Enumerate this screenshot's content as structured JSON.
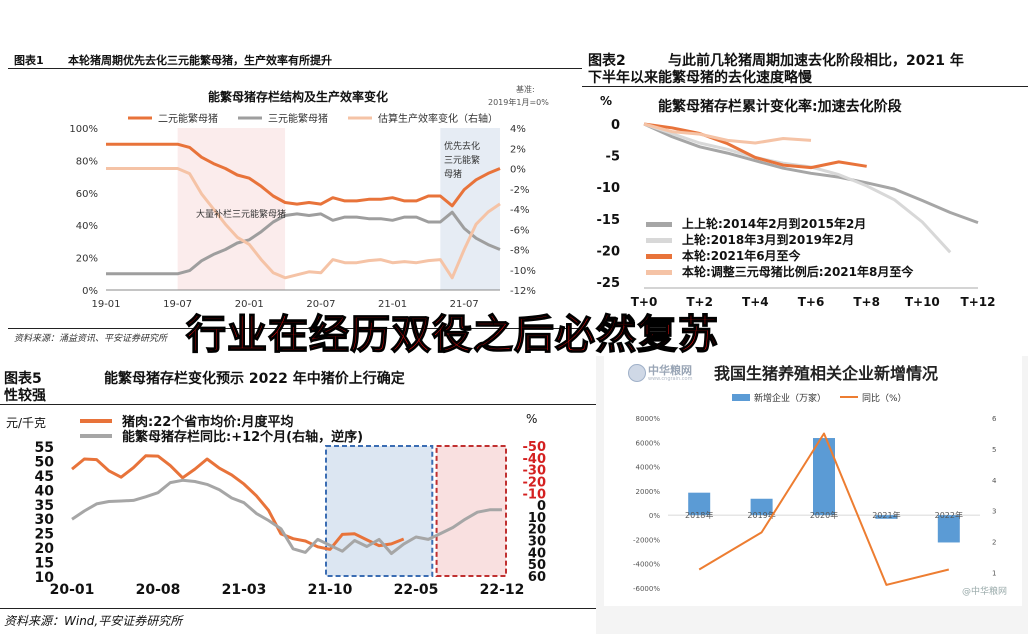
{
  "headline": "行业在经历双役之后必然复苏",
  "panel1": {
    "tag": "图表1",
    "caption": "本轮猪周期优先去化三元能繁母猪，生产效率有所提升",
    "source": "资料来源：涌益资讯、平安证券研究所",
    "chart_data": {
      "type": "line",
      "title": "能繁母猪存栏结构及生产效率变化",
      "base_note": [
        "基准:",
        "2019年1月=0%"
      ],
      "x_ticks": [
        "19-01",
        "19-07",
        "20-01",
        "20-07",
        "21-01",
        "21-07"
      ],
      "y_left_ticks": [
        "100%",
        "80%",
        "60%",
        "40%",
        "20%",
        "0%"
      ],
      "y_right_ticks": [
        "4%",
        "2%",
        "0%",
        "-2%",
        "-4%",
        "-6%",
        "-8%",
        "-10%",
        "-12%"
      ],
      "ylim_left": [
        0,
        100
      ],
      "ylim_right": [
        -12,
        4
      ],
      "x_months": [
        "2019-01",
        "2019-02",
        "2019-03",
        "2019-04",
        "2019-05",
        "2019-06",
        "2019-07",
        "2019-08",
        "2019-09",
        "2019-10",
        "2019-11",
        "2019-12",
        "2020-01",
        "2020-02",
        "2020-03",
        "2020-04",
        "2020-05",
        "2020-06",
        "2020-07",
        "2020-08",
        "2020-09",
        "2020-10",
        "2020-11",
        "2020-12",
        "2021-01",
        "2021-02",
        "2021-03",
        "2021-04",
        "2021-05",
        "2021-06",
        "2021-07",
        "2021-08",
        "2021-09",
        "2021-10"
      ],
      "series": [
        {
          "name": "二元能繁母猪",
          "axis": "left",
          "color": "#e8733a",
          "values": [
            90,
            90,
            90,
            90,
            90,
            90,
            90,
            88,
            82,
            78,
            75,
            71,
            69,
            64,
            58,
            54,
            53,
            54,
            53,
            57,
            55,
            55,
            56,
            56,
            57,
            55,
            55,
            58,
            58,
            52,
            62,
            68,
            72,
            75
          ]
        },
        {
          "name": "三元能繁母猪",
          "axis": "left",
          "color": "#9e9e9e",
          "values": [
            10,
            10,
            10,
            10,
            10,
            10,
            10,
            12,
            18,
            22,
            25,
            29,
            31,
            36,
            42,
            46,
            47,
            46,
            47,
            43,
            45,
            45,
            44,
            44,
            43,
            45,
            45,
            42,
            42,
            48,
            38,
            32,
            28,
            25
          ]
        },
        {
          "name": "估算生产效率变化（右轴）",
          "axis": "right",
          "color": "#f5c3a6",
          "values": [
            0,
            0,
            0,
            0,
            0,
            0,
            0,
            -0.5,
            -2.5,
            -4,
            -5.5,
            -6.8,
            -7.5,
            -9,
            -10.3,
            -10.8,
            -10.5,
            -10.2,
            -10.3,
            -9,
            -9.3,
            -9.3,
            -9.1,
            -9,
            -9.3,
            -9.2,
            -9.3,
            -9.1,
            -9,
            -10.8,
            -8,
            -5.5,
            -4.3,
            -3.5
          ]
        }
      ],
      "annotations": [
        {
          "text": "大量补栏三元能繁母猪"
        },
        {
          "text": [
            "优先去化",
            "三元能繁",
            "母猪"
          ]
        }
      ]
    }
  },
  "panel2": {
    "tag": "图表2",
    "caption": [
      "与此前几轮猪周期加速去化阶段相比，2021 年",
      "下半年以来能繁母猪的去化速度略慢"
    ],
    "chart_data": {
      "type": "line",
      "title": "能繁母猪存栏累计变化率:加速去化阶段",
      "y_unit": "%",
      "y_ticks": [
        "0",
        "-5",
        "-10",
        "-15",
        "-20",
        "-25"
      ],
      "ylim": [
        -25,
        0
      ],
      "x_ticks": [
        "T+0",
        "T+2",
        "T+4",
        "T+6",
        "T+8",
        "T+10",
        "T+12"
      ],
      "xlim": [
        0,
        12
      ],
      "series": [
        {
          "name": "上上轮:2014年2月到2015年2月",
          "color": "#a6a6a6",
          "x": [
            0,
            1,
            2,
            3,
            4,
            5,
            6,
            7,
            8,
            9,
            10,
            11,
            12
          ],
          "values": [
            0,
            -2,
            -3.6,
            -4.6,
            -5.8,
            -7,
            -7.8,
            -8.4,
            -9.3,
            -10.3,
            -12.1,
            -14,
            -15.6
          ]
        },
        {
          "name": "上轮:2018年3月到2019年2月",
          "color": "#d8d8d8",
          "x": [
            0,
            1,
            2,
            3,
            4,
            5,
            6,
            7,
            8,
            9,
            10,
            11
          ],
          "values": [
            0,
            -1.5,
            -3,
            -4,
            -5.3,
            -6.2,
            -6.8,
            -8,
            -9.8,
            -12,
            -15.5,
            -20.3
          ]
        },
        {
          "name": "本轮:2021年6月至今",
          "color": "#e8733a",
          "x": [
            0,
            1,
            2,
            3,
            4,
            5,
            6,
            7,
            8
          ],
          "values": [
            0,
            -0.6,
            -1.5,
            -3.1,
            -5.3,
            -6.5,
            -6.9,
            -6,
            -6.7
          ]
        },
        {
          "name": "本轮:调整三元母猪比例后:2021年8月至今",
          "color": "#f5c3a6",
          "x": [
            0,
            1,
            2,
            3,
            4,
            5,
            6
          ],
          "values": [
            0,
            -1.2,
            -1.6,
            -2.6,
            -3,
            -2.3,
            -2.6
          ]
        }
      ]
    }
  },
  "panel3": {
    "tag": "图表5",
    "caption": [
      "能繁母猪存栏变化预示 2022 年中猪价上行确定",
      "性较强"
    ],
    "source": "资料来源：Wind,平安证券研究所",
    "chart_data": {
      "type": "line",
      "y_left_unit": "元/千克",
      "y_right_unit": "%",
      "y_left_ticks": [
        "55",
        "50",
        "45",
        "40",
        "35",
        "30",
        "25",
        "20",
        "15",
        "10"
      ],
      "y_right_ticks": [
        "-50",
        "-40",
        "-30",
        "-20",
        "-10",
        "0",
        "10",
        "20",
        "30",
        "40",
        "50",
        "60"
      ],
      "ylim_left": [
        10,
        55
      ],
      "ylim_right": [
        -50,
        60
      ],
      "x_ticks": [
        "20-01",
        "20-08",
        "21-03",
        "21-10",
        "22-05",
        "22-12"
      ],
      "x_months": [
        "2020-01",
        "2020-02",
        "2020-03",
        "2020-04",
        "2020-05",
        "2020-06",
        "2020-07",
        "2020-08",
        "2020-09",
        "2020-10",
        "2020-11",
        "2020-12",
        "2021-01",
        "2021-02",
        "2021-03",
        "2021-04",
        "2021-05",
        "2021-06",
        "2021-07",
        "2021-08",
        "2021-09",
        "2021-10",
        "2021-11",
        "2021-12",
        "2022-01",
        "2022-02",
        "2022-03",
        "2022-04",
        "2022-05",
        "2022-06",
        "2022-07",
        "2022-08",
        "2022-09",
        "2022-10",
        "2022-11",
        "2022-12"
      ],
      "series": [
        {
          "name": "猪肉:22个省市均价:月度平均",
          "axis": "left",
          "color": "#e8733a",
          "values": [
            47,
            50.5,
            50.3,
            46.4,
            44.2,
            47.5,
            51.6,
            51.5,
            48.2,
            44,
            47,
            50.5,
            47.3,
            45,
            41.8,
            37.8,
            32.7,
            24.6,
            22.9,
            22.1,
            20.1,
            19.2,
            24.4,
            24.6,
            22.5,
            20.5,
            21.1,
            22.8
          ]
        },
        {
          "name": "能繁母猪存栏同比:+12个月(右轴，逆序)",
          "axis": "right",
          "color": "#a6a6a6",
          "values": [
            12,
            5,
            -1,
            -3,
            -3.5,
            -4,
            -7,
            -10.5,
            -19,
            -21,
            -20,
            -17.5,
            -13,
            -6,
            -2,
            7,
            13,
            20,
            37,
            40,
            29,
            34,
            39,
            30,
            35,
            29,
            41,
            33,
            27,
            29,
            24,
            19,
            12,
            6,
            4,
            4
          ]
        }
      ],
      "shaded_ranges": [
        {
          "from": "2021-10",
          "to": "2022-06",
          "color": "#dce6f2",
          "border": "#3b6db3"
        },
        {
          "from": "2022-07",
          "to": "2022-12",
          "color": "#f9e0e0",
          "border": "#c03030"
        }
      ]
    }
  },
  "panel4": {
    "brand": "中华粮网",
    "brand_url": "www.cngrain.com",
    "watermark": "@中华粮网",
    "chart_data": {
      "type": "bar",
      "title": "我国生猪养殖相关企业新增情况",
      "categories": [
        "2018年",
        "2019年",
        "2020年",
        "2021年",
        "2022年"
      ],
      "y_left_ticks": [
        "8000%",
        "6000%",
        "4000%",
        "2000%",
        "0%",
        "-2000%",
        "-4000%",
        "-6000%"
      ],
      "ylim_left": [
        -6000,
        8000
      ],
      "y_right_ticks": [
        "6",
        "5",
        "4",
        "3",
        "2",
        "1"
      ],
      "ylim_right": [
        0.5,
        6
      ],
      "series": [
        {
          "name": "新增企业（万家）",
          "type": "bar",
          "color": "#5b9bd5",
          "values": [
            1850,
            1350,
            6350,
            -300,
            -2250
          ]
        },
        {
          "name": "同比（%）",
          "type": "line",
          "axis": "right",
          "color": "#ed7d31",
          "values": [
            1.1,
            2.3,
            5.5,
            0.6,
            1.1
          ]
        }
      ]
    }
  }
}
